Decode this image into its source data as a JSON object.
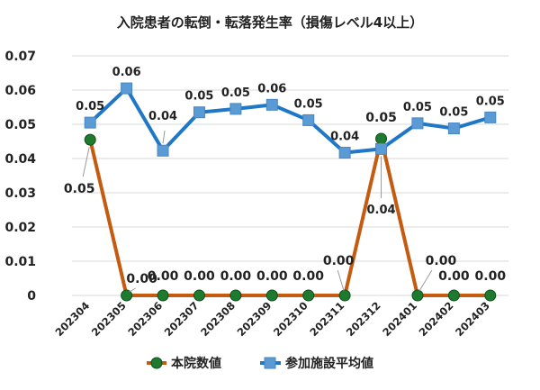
{
  "chart_data": {
    "type": "line",
    "title": "入院患者の転倒・転落発生率（損傷レベル4以上）",
    "categories": [
      "202304",
      "202305",
      "202306",
      "202307",
      "202308",
      "202309",
      "202310",
      "202311",
      "202312",
      "202401",
      "202402",
      "202403"
    ],
    "ylim": [
      0,
      0.07
    ],
    "y_ticks": [
      "0",
      "0.01",
      "0.02",
      "0.03",
      "0.04",
      "0.05",
      "0.06",
      "0.07"
    ],
    "grid": true,
    "legend_position": "bottom",
    "series": [
      {
        "name": "本院数値",
        "color": "#C55A11",
        "marker_color": "#1E7A2E",
        "marker": "circle",
        "values": [
          0.0455,
          0,
          0,
          0,
          0,
          0,
          0,
          0,
          0.0458,
          0,
          0,
          0
        ],
        "labels": [
          "0.05",
          "0.00",
          "0.00",
          "0.00",
          "0.00",
          "0.00",
          "0.00",
          "0.00",
          "0.05",
          "0.00",
          "0.00",
          "0.00"
        ]
      },
      {
        "name": "参加施設平均値",
        "color": "#1F77C8",
        "marker_color": "#5B9BD5",
        "marker": "square",
        "values": [
          0.0505,
          0.0605,
          0.0423,
          0.0535,
          0.0545,
          0.0557,
          0.0512,
          0.0417,
          0.0428,
          0.0503,
          0.0488,
          0.052
        ],
        "labels": [
          "0.05",
          "0.06",
          "0.04",
          "0.05",
          "0.05",
          "0.06",
          "0.05",
          "0.04",
          "0.04",
          "0.05",
          "0.05",
          "0.05"
        ]
      }
    ]
  }
}
